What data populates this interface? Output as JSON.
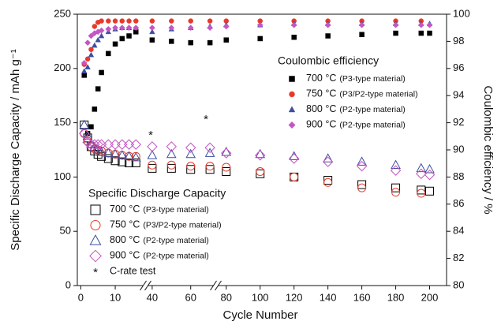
{
  "chart_data": {
    "type": "scatter",
    "x_label": "Cycle Number",
    "y_label": "Specific Discharge Capacity / mAh g⁻¹",
    "y2_label": "Coulombic efficiency / %",
    "xlim": [
      -1,
      210
    ],
    "x_breaks": [
      [
        18,
        38
      ],
      [
        72,
        75
      ]
    ],
    "xticks": [
      0,
      10,
      40,
      60,
      80,
      100,
      120,
      140,
      160,
      180,
      200
    ],
    "ylim": [
      0,
      250
    ],
    "yticks": [
      0,
      50,
      100,
      150,
      200,
      250
    ],
    "y2lim": [
      80,
      100
    ],
    "y2ticks": [
      80,
      82,
      84,
      86,
      88,
      90,
      92,
      94,
      96,
      98,
      100
    ],
    "legend_titles": {
      "y2": "Coulombic efficiency",
      "y": "Specific Discharge Capacity"
    },
    "annotations": [
      "*",
      "*"
    ],
    "c_rate_symbol": "*",
    "c_rate_note": "C-rate test",
    "x": [
      1,
      2,
      3,
      4,
      5,
      6,
      8,
      10,
      12,
      14,
      16,
      40,
      50,
      60,
      70,
      80,
      100,
      120,
      140,
      160,
      180,
      195,
      200
    ],
    "series": [
      {
        "name": "700 °C",
        "material": "(P3-type material)",
        "axis": "y2",
        "marker": "square",
        "filled": true,
        "color": "#000000",
        "values": [
          95.5,
          91.2,
          91.7,
          93,
          94.5,
          95.7,
          97.1,
          97.8,
          98.2,
          98.4,
          98.7,
          98.1,
          98.0,
          97.9,
          97.9,
          98.1,
          98.2,
          98.3,
          98.4,
          98.5,
          98.6,
          98.6,
          98.6
        ]
      },
      {
        "name": "750 °C",
        "material": "(P3/P2-type material)",
        "axis": "y2",
        "marker": "circle",
        "filled": true,
        "color": "#e8392a",
        "values": [
          96.3,
          96.7,
          97.4,
          99.1,
          99.4,
          99.5,
          99.5,
          99.5,
          99.5,
          99.5,
          99.5,
          99.5,
          99.5,
          99.5,
          99.5,
          99.5,
          99.5,
          99.5,
          99.5,
          99.5,
          99.5,
          99.5,
          null
        ]
      },
      {
        "name": "800 °C",
        "material": "(P2-type material)",
        "axis": "y2",
        "marker": "triangle",
        "filled": true,
        "color": "#3d4fa0",
        "values": [
          95.8,
          96.1,
          97,
          97.7,
          98.1,
          98.4,
          98.7,
          98.9,
          99.0,
          99.0,
          99.0,
          98.7,
          98.9,
          99.0,
          99.1,
          99.2,
          99.2,
          99.3,
          99.3,
          99.3,
          99.3,
          99.3,
          99.3
        ]
      },
      {
        "name": "900 °C",
        "material": "(P2-type material)",
        "axis": "y2",
        "marker": "diamond",
        "filled": true,
        "color": "#c455c4",
        "values": [
          96.4,
          97.9,
          98.4,
          98.6,
          98.7,
          98.8,
          98.9,
          99.0,
          99.0,
          99.0,
          99.0,
          99.0,
          99.0,
          99.0,
          99.0,
          99.1,
          99.2,
          99.2,
          99.2,
          99.2,
          99.2,
          99.2,
          99.2
        ]
      },
      {
        "name": "700 °C",
        "material": "(P3-type material)",
        "axis": "y",
        "marker": "square",
        "filled": false,
        "color": "#000000",
        "values": [
          148,
          136,
          128,
          124,
          121,
          119,
          117,
          115,
          114,
          113,
          113,
          108,
          108,
          107,
          107,
          105,
          103,
          100,
          97,
          93,
          90,
          88,
          87
        ]
      },
      {
        "name": "750 °C",
        "material": "(P3/P2-type material)",
        "axis": "y",
        "marker": "circle",
        "filled": false,
        "color": "#e8392a",
        "values": [
          140,
          133,
          128,
          126,
          125,
          124,
          122,
          121,
          120,
          119,
          119,
          111,
          111,
          110,
          110,
          109,
          105,
          100,
          95,
          90,
          86,
          85,
          null
        ]
      },
      {
        "name": "800 °C",
        "material": "(P2-type material)",
        "axis": "y",
        "marker": "triangle",
        "filled": false,
        "color": "#3d4fa0",
        "values": [
          148,
          138,
          130,
          127,
          125,
          123,
          122,
          121,
          120,
          119,
          118,
          120,
          121,
          121,
          122,
          123,
          121,
          119,
          117,
          114,
          111,
          108,
          107
        ]
      },
      {
        "name": "900 °C",
        "material": "(P2-type material)",
        "axis": "y",
        "marker": "diamond",
        "filled": false,
        "color": "#c455c4",
        "values": [
          140,
          132,
          130,
          130,
          130,
          130,
          130,
          130,
          130,
          130,
          130,
          128,
          128,
          127,
          127,
          122,
          120,
          117,
          114,
          110,
          106,
          103,
          102
        ]
      }
    ]
  }
}
